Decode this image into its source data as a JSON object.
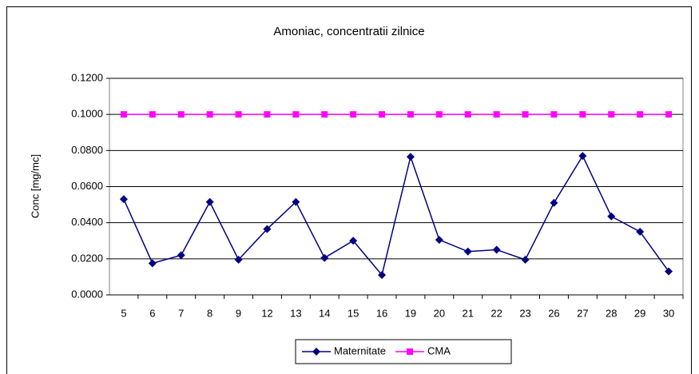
{
  "chart_data": {
    "type": "line",
    "title": "Amoniac, concentratii zilnice",
    "ylabel": "Conc [mg/mc]",
    "categories": [
      "5",
      "6",
      "7",
      "8",
      "9",
      "12",
      "13",
      "14",
      "15",
      "16",
      "19",
      "20",
      "21",
      "22",
      "23",
      "26",
      "27",
      "28",
      "29",
      "30"
    ],
    "series": [
      {
        "name": "Maternitate",
        "color": "#000080",
        "marker": "diamond",
        "values": [
          0.053,
          0.0175,
          0.022,
          0.0515,
          0.0195,
          0.0365,
          0.0515,
          0.0205,
          0.03,
          0.011,
          0.0765,
          0.0305,
          0.024,
          0.025,
          0.0195,
          0.051,
          0.077,
          0.0435,
          0.035,
          0.013
        ]
      },
      {
        "name": "CMA",
        "color": "#ff00ff",
        "marker": "square",
        "values": [
          0.1,
          0.1,
          0.1,
          0.1,
          0.1,
          0.1,
          0.1,
          0.1,
          0.1,
          0.1,
          0.1,
          0.1,
          0.1,
          0.1,
          0.1,
          0.1,
          0.1,
          0.1,
          0.1,
          0.1
        ]
      }
    ],
    "ylim": [
      0,
      0.12
    ],
    "yticks": [
      {
        "value": 0,
        "label": "0.0000"
      },
      {
        "value": 0.02,
        "label": "0.0200"
      },
      {
        "value": 0.04,
        "label": "0.0400"
      },
      {
        "value": 0.06,
        "label": "0.0600"
      },
      {
        "value": 0.08,
        "label": "0.0800"
      },
      {
        "value": 0.1,
        "label": "0.1000"
      },
      {
        "value": 0.12,
        "label": "0.1200"
      }
    ],
    "grid": true,
    "legend": "bottom"
  }
}
